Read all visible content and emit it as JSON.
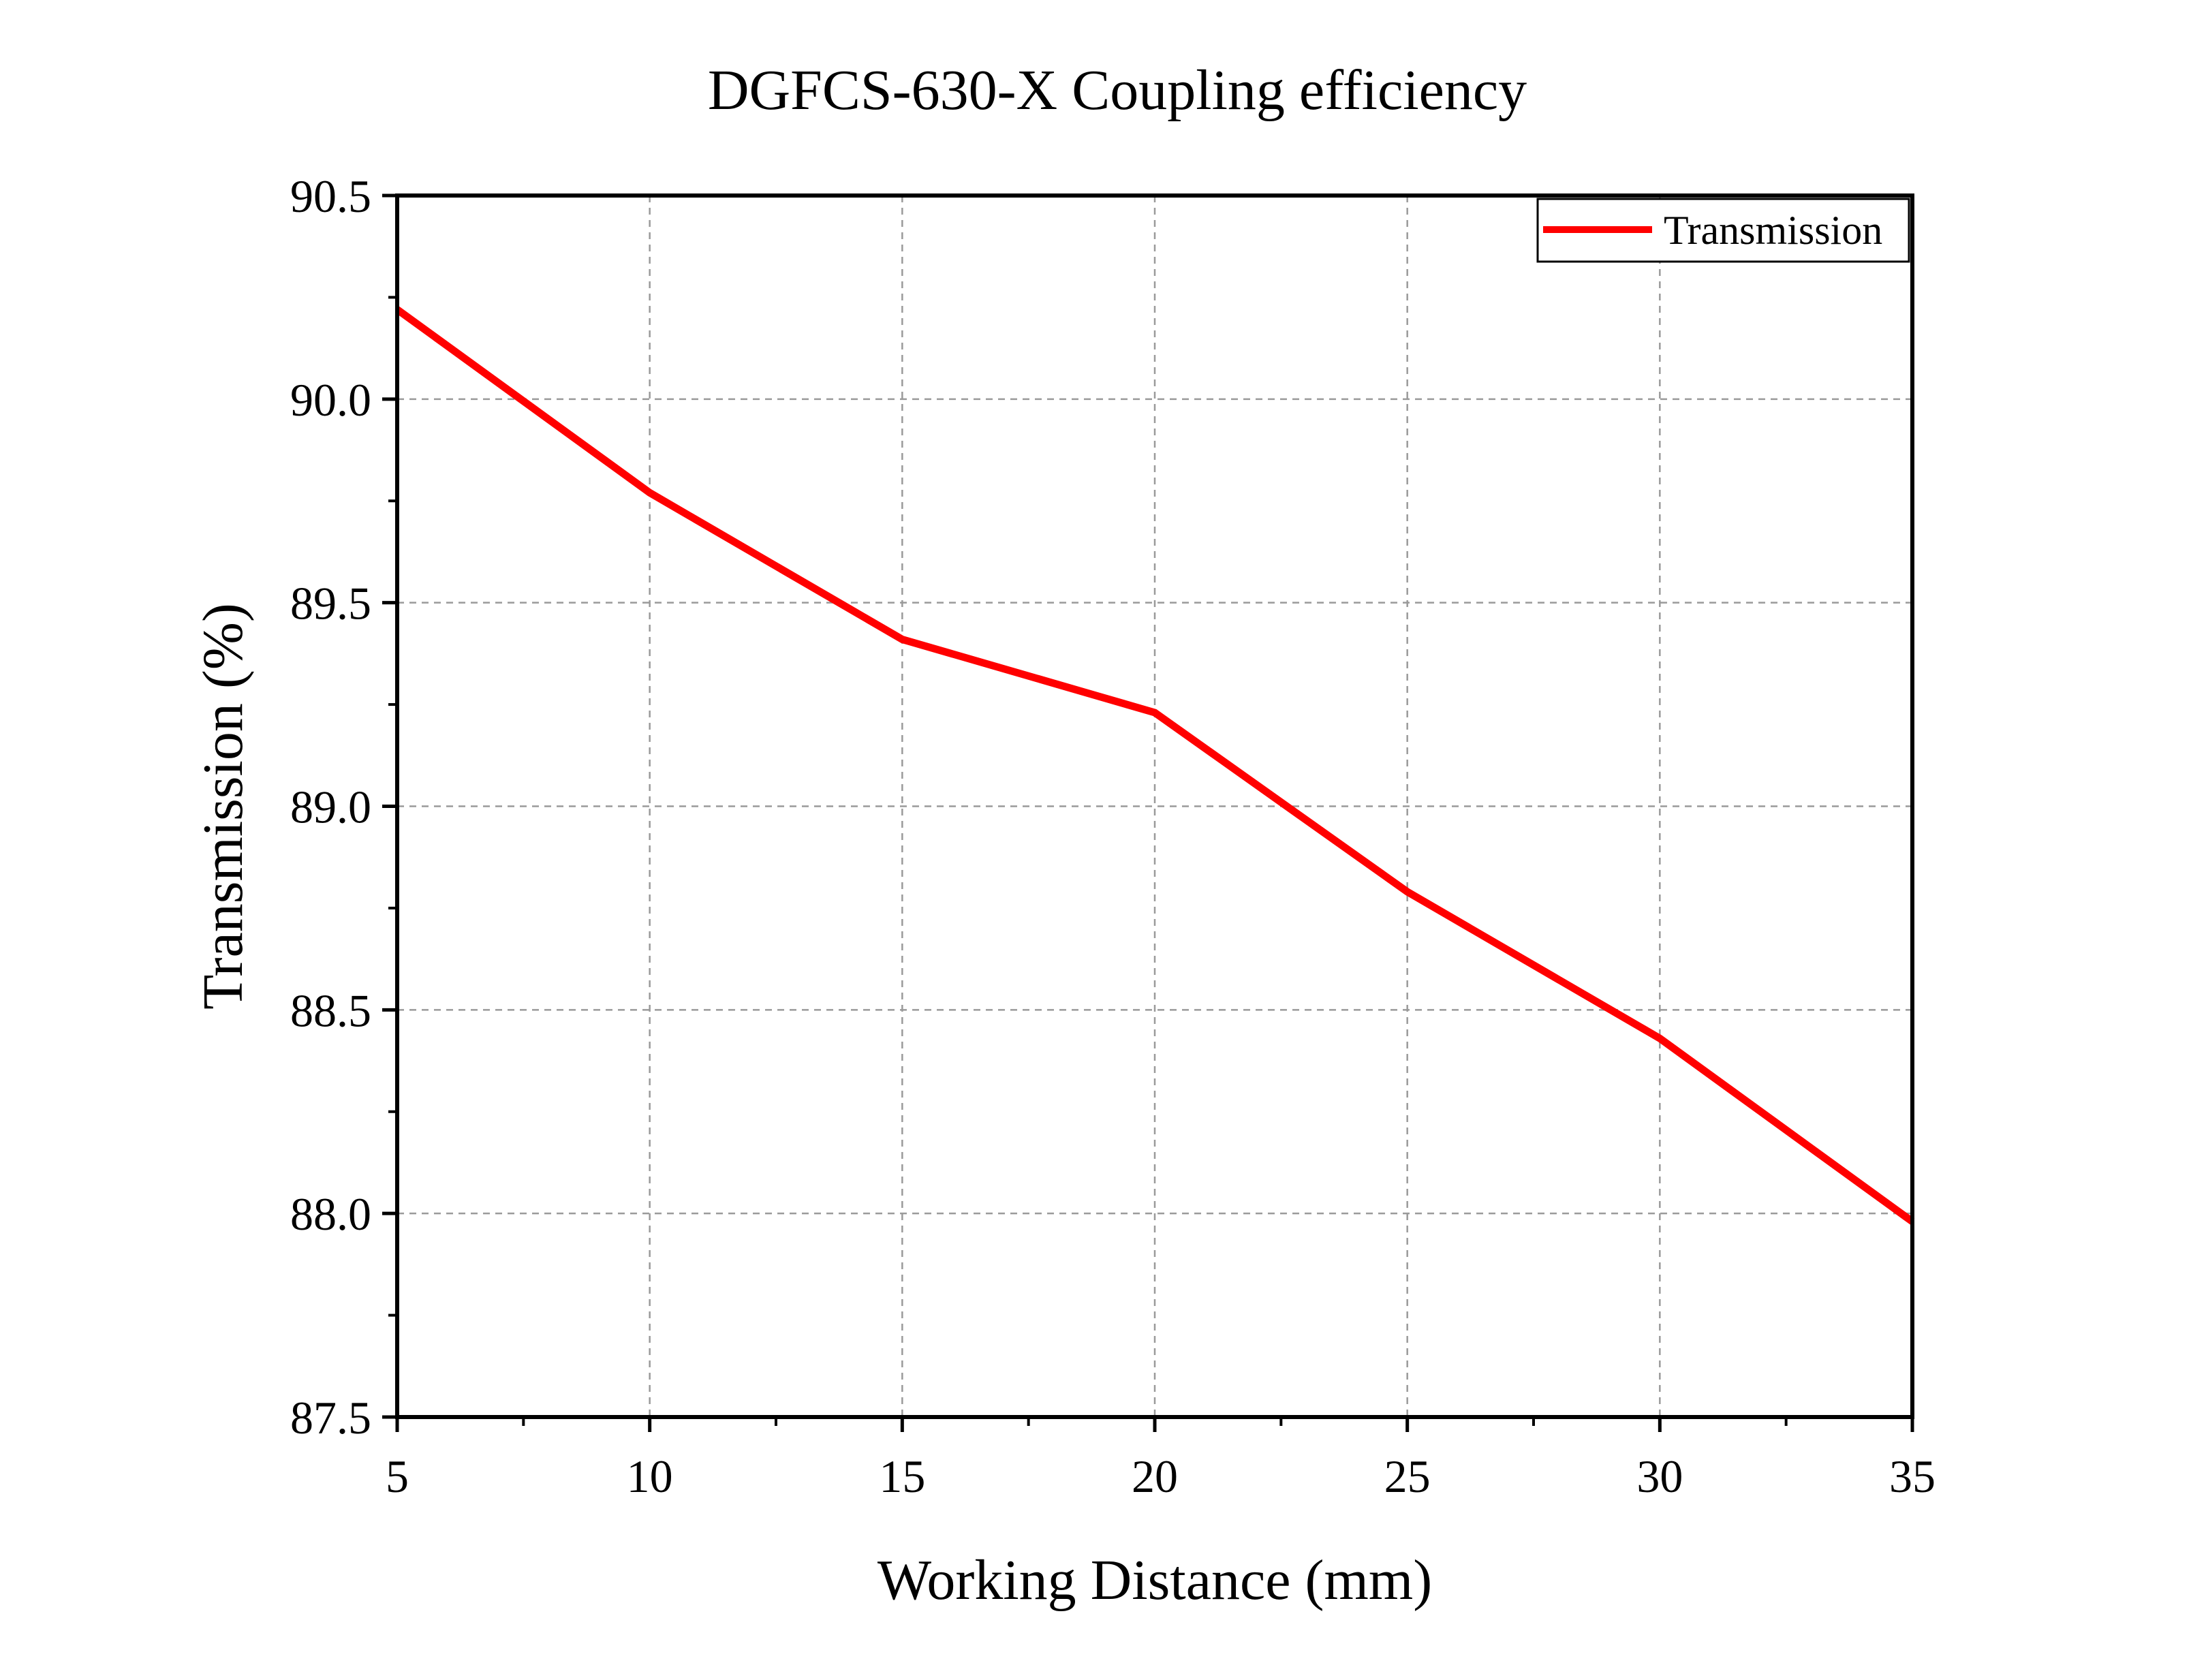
{
  "chart_data": {
    "type": "line",
    "title": "DGFCS-630-X Coupling efficiency",
    "xlabel": "Working Distance (mm)",
    "ylabel": "Transmission (%)",
    "xlim": [
      5,
      35
    ],
    "ylim": [
      87.5,
      90.5
    ],
    "x_ticks": [
      "5",
      "10",
      "15",
      "20",
      "25",
      "30",
      "35"
    ],
    "y_ticks": [
      "87.5",
      "88.0",
      "88.5",
      "89.0",
      "89.5",
      "90.0",
      "90.5"
    ],
    "grid": true,
    "legend_position": "top-right",
    "series": [
      {
        "name": "Transmission",
        "color": "#ff0000",
        "x": [
          5,
          10,
          15,
          20,
          25,
          30,
          35
        ],
        "y": [
          90.22,
          89.77,
          89.41,
          89.23,
          88.79,
          88.43,
          87.98
        ]
      }
    ]
  }
}
